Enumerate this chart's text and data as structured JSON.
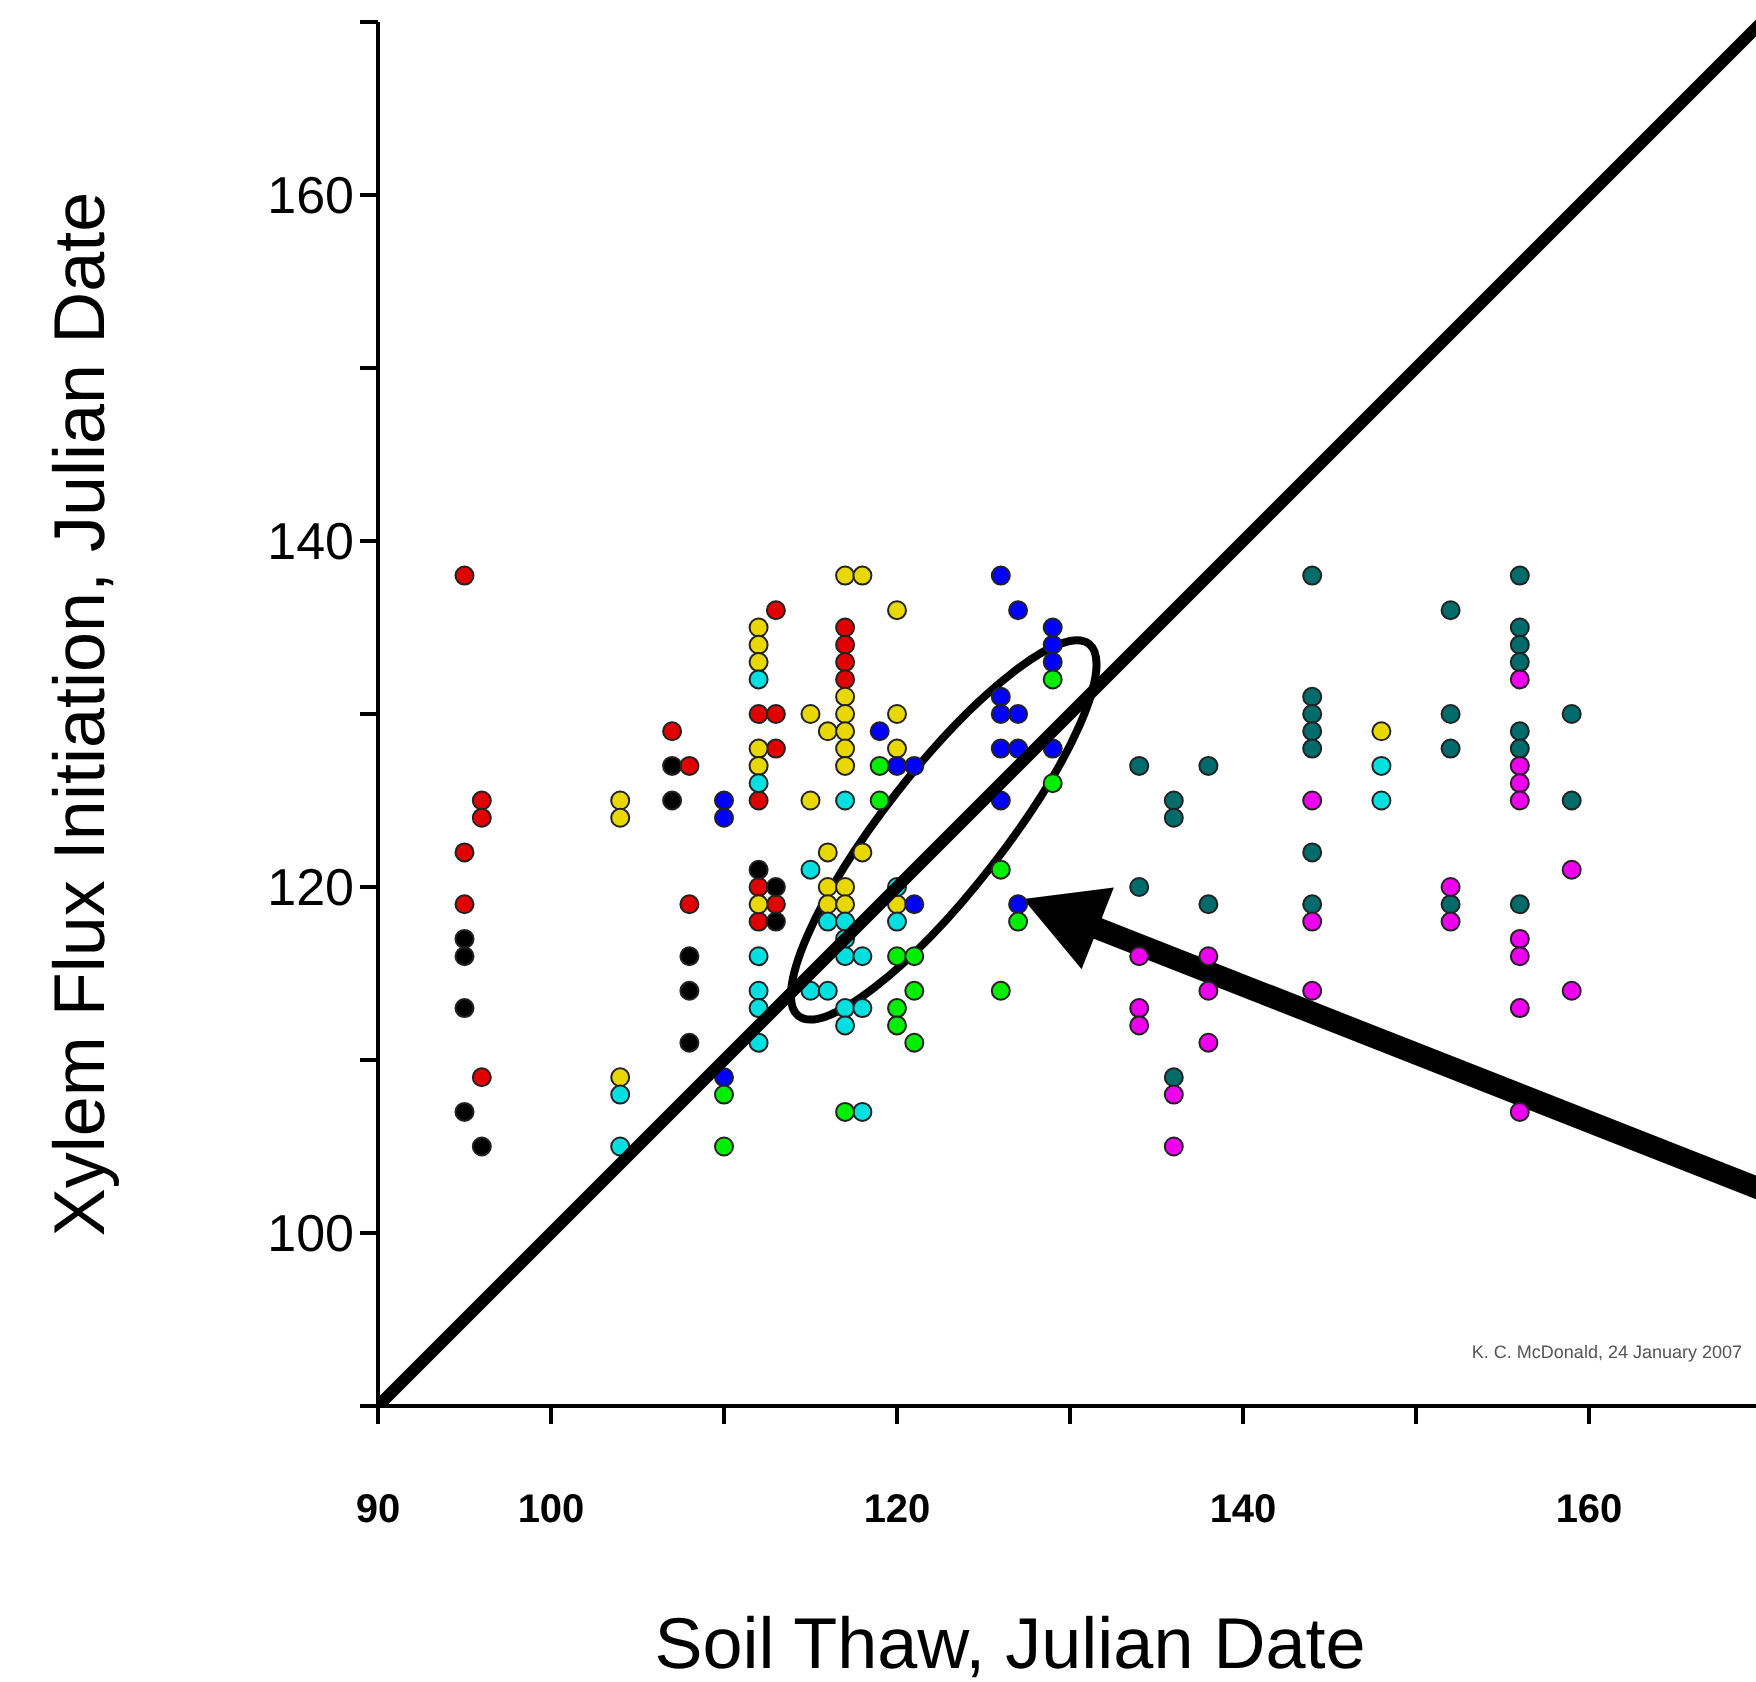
{
  "chart_data": {
    "type": "scatter",
    "xlabel": "Soil Thaw, Julian Date",
    "ylabel": "Xylem Flux Initiation, Julian Date",
    "xlim": [
      90,
      170
    ],
    "ylim": [
      90,
      170
    ],
    "xticks": [
      90,
      100,
      {
        "value": 110,
        "label": null
      },
      120,
      {
        "value": 130,
        "label": null
      },
      140,
      {
        "value": 150,
        "label": null
      },
      160,
      {
        "value": 170,
        "label": null
      }
    ],
    "yticks": [
      {
        "value": 90,
        "label": null
      },
      100,
      {
        "value": 110,
        "label": null
      },
      120,
      {
        "value": 130,
        "label": null
      },
      140,
      {
        "value": 150,
        "label": null
      },
      160,
      {
        "value": 170,
        "label": null
      }
    ],
    "grid": false,
    "marker": "circle",
    "annotations": [
      "K. C. McDonald, 24 January 2007"
    ],
    "series": [
      {
        "color": "#e00000",
        "x": [
          95,
          96,
          96,
          95,
          95,
          96,
          107,
          108,
          108,
          113,
          112,
          113,
          113,
          112,
          117,
          117,
          117,
          117,
          112,
          112,
          113
        ],
        "values": [
          138,
          125,
          124,
          122,
          119,
          109,
          129,
          127,
          119,
          136,
          130,
          130,
          128,
          125,
          135,
          134,
          133,
          132,
          120,
          118,
          119
        ]
      },
      {
        "color": "#000000",
        "x": [
          95,
          95,
          95,
          95,
          96,
          107,
          107,
          108,
          108,
          108,
          112,
          113,
          113
        ],
        "values": [
          117,
          116,
          113,
          107,
          105,
          127,
          125,
          116,
          114,
          111,
          121,
          120,
          118
        ]
      },
      {
        "color": "#e8d800",
        "x": [
          104,
          104,
          104,
          112,
          112,
          112,
          112,
          112,
          115,
          115,
          116,
          117,
          117,
          117,
          117,
          117,
          117,
          118,
          120,
          120,
          120,
          112,
          116,
          118,
          116,
          117,
          116,
          117,
          120,
          148
        ],
        "values": [
          125,
          124,
          109,
          135,
          134,
          133,
          128,
          127,
          130,
          125,
          129,
          131,
          130,
          129,
          128,
          127,
          138,
          138,
          136,
          130,
          128,
          119,
          122,
          122,
          120,
          120,
          119,
          119,
          119,
          129
        ]
      },
      {
        "color": "#00e0e0",
        "x": [
          104,
          104,
          112,
          112,
          117,
          115,
          116,
          117,
          120,
          120,
          112,
          112,
          112,
          112,
          115,
          116,
          117,
          117,
          118,
          117,
          118,
          117,
          118,
          148,
          148
        ],
        "values": [
          108,
          105,
          132,
          126,
          125,
          121,
          118,
          118,
          120,
          118,
          116,
          114,
          113,
          111,
          114,
          114,
          117,
          116,
          116,
          113,
          113,
          112,
          107,
          127,
          125
        ]
      },
      {
        "color": "#0000ff",
        "x": [
          110,
          110,
          110,
          119,
          120,
          121,
          126,
          127,
          129,
          129,
          129,
          126,
          127,
          126,
          126,
          127,
          129,
          126,
          127,
          121
        ],
        "values": [
          125,
          124,
          109,
          129,
          127,
          127,
          138,
          136,
          135,
          134,
          133,
          131,
          130,
          130,
          128,
          128,
          128,
          125,
          119,
          119
        ]
      },
      {
        "color": "#00ee00",
        "x": [
          110,
          110,
          119,
          119,
          129,
          129,
          126,
          127,
          126,
          120,
          121,
          121,
          120,
          120,
          121,
          117
        ],
        "values": [
          108,
          105,
          127,
          125,
          132,
          126,
          121,
          118,
          114,
          116,
          116,
          114,
          113,
          112,
          111,
          107
        ]
      },
      {
        "color": "#006b6b",
        "x": [
          144,
          156,
          152,
          156,
          156,
          156,
          144,
          144,
          144,
          144,
          152,
          152,
          156,
          156,
          159,
          159,
          134,
          138,
          136,
          136,
          144,
          134,
          138,
          144,
          152,
          156,
          136
        ],
        "values": [
          138,
          138,
          136,
          135,
          134,
          133,
          131,
          130,
          129,
          128,
          130,
          128,
          129,
          128,
          130,
          125,
          127,
          127,
          125,
          124,
          122,
          120,
          119,
          119,
          119,
          119,
          109
        ]
      },
      {
        "color": "#ee00ee",
        "x": [
          156,
          156,
          156,
          156,
          144,
          144,
          152,
          152,
          156,
          156,
          159,
          134,
          134,
          134,
          138,
          138,
          138,
          136,
          136,
          144,
          156,
          159,
          156
        ],
        "values": [
          132,
          127,
          126,
          125,
          125,
          118,
          120,
          118,
          117,
          116,
          121,
          116,
          113,
          112,
          116,
          114,
          111,
          108,
          105,
          114,
          113,
          114,
          107
        ]
      },
      {
        "type": "line",
        "color": "#000000",
        "line_style": "solid",
        "marker": "none",
        "x": [
          90,
          170
        ],
        "values": [
          90,
          170
        ]
      }
    ]
  }
}
